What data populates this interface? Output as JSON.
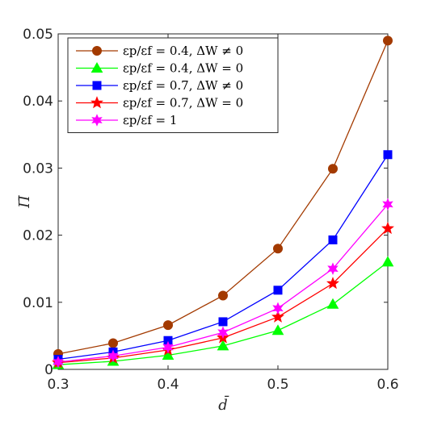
{
  "chart_data": {
    "type": "line",
    "title": "",
    "xlabel": "d̄",
    "ylabel": "Π̄",
    "x": [
      0.3,
      0.35,
      0.4,
      0.45,
      0.5,
      0.55,
      0.6
    ],
    "xlim": [
      0.3,
      0.6
    ],
    "ylim": [
      0,
      0.05
    ],
    "xticks": [
      "0.3",
      "0.4",
      "0.5",
      "0.6"
    ],
    "yticks": [
      "0",
      "0.01",
      "0.02",
      "0.03",
      "0.04",
      "0.05"
    ],
    "grid": false,
    "legend_position": "top-left",
    "series": [
      {
        "name": "εp/εf = 0.4, ΔW ≠ 0",
        "color": "#a33a00",
        "marker": "circle",
        "values": [
          0.0023,
          0.0039,
          0.0066,
          0.011,
          0.018,
          0.0299,
          0.049
        ]
      },
      {
        "name": "εp/εf = 0.4, ΔW = 0",
        "color": "#00ff00",
        "marker": "triangle",
        "values": [
          0.0007,
          0.0012,
          0.0021,
          0.0035,
          0.0058,
          0.0097,
          0.016
        ]
      },
      {
        "name": "εp/εf = 0.7, ΔW ≠ 0",
        "color": "#0000ff",
        "marker": "square",
        "values": [
          0.0015,
          0.0026,
          0.0043,
          0.0071,
          0.0118,
          0.0193,
          0.032
        ]
      },
      {
        "name": "εp/εf = 0.7, ΔW = 0",
        "color": "#ff0000",
        "marker": "star5",
        "values": [
          0.001,
          0.0017,
          0.0029,
          0.0047,
          0.0078,
          0.0128,
          0.021
        ]
      },
      {
        "name": "εp/εf = 1",
        "color": "#ff00ff",
        "marker": "star6",
        "values": [
          0.0011,
          0.002,
          0.0033,
          0.0055,
          0.0091,
          0.015,
          0.0246
        ]
      }
    ]
  }
}
